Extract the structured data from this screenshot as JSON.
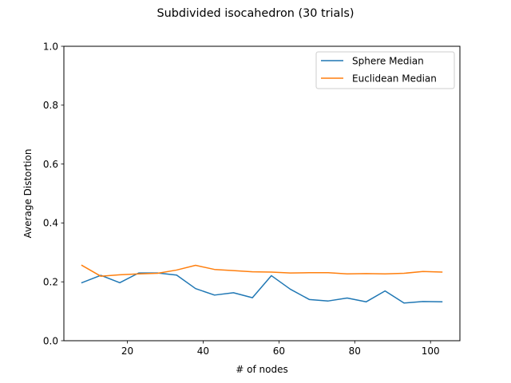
{
  "chart_data": {
    "type": "line",
    "title": "Subdivided isocahedron (30 trials)",
    "xlabel": "# of nodes",
    "ylabel": "Average Distortion",
    "xlim": [
      3.25,
      107.75
    ],
    "ylim": [
      0.0,
      1.0
    ],
    "xticks": [
      20,
      40,
      60,
      80,
      100
    ],
    "yticks": [
      0.0,
      0.2,
      0.4,
      0.6,
      0.8,
      1.0
    ],
    "xtick_labels": [
      "20",
      "40",
      "60",
      "80",
      "100"
    ],
    "ytick_labels": [
      "0.0",
      "0.2",
      "0.4",
      "0.6",
      "0.8",
      "1.0"
    ],
    "grid": false,
    "legend_position": "upper right",
    "x": [
      8,
      13,
      18,
      23,
      28,
      33,
      38,
      43,
      48,
      53,
      58,
      63,
      68,
      73,
      78,
      83,
      88,
      93,
      98,
      103
    ],
    "series": [
      {
        "name": "Sphere Median",
        "color": "#1f77b4",
        "values": [
          0.197,
          0.222,
          0.197,
          0.23,
          0.23,
          0.223,
          0.177,
          0.155,
          0.163,
          0.146,
          0.221,
          0.175,
          0.14,
          0.135,
          0.145,
          0.132,
          0.169,
          0.128,
          0.133,
          0.132
        ]
      },
      {
        "name": "Euclidean Median",
        "color": "#ff7f0e",
        "values": [
          0.256,
          0.219,
          0.224,
          0.227,
          0.229,
          0.24,
          0.256,
          0.242,
          0.238,
          0.234,
          0.233,
          0.23,
          0.231,
          0.231,
          0.227,
          0.228,
          0.227,
          0.229,
          0.235,
          0.233
        ]
      }
    ]
  }
}
